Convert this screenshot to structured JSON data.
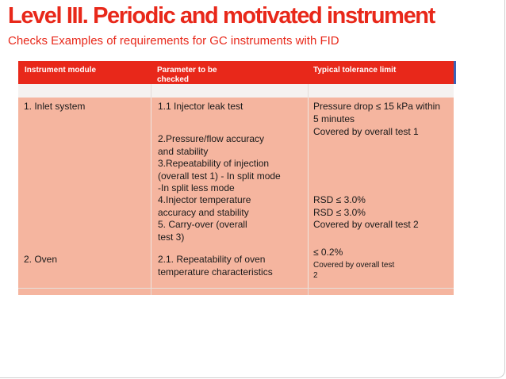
{
  "title": "Level III. Periodic and motivated instrument",
  "subtitle": "Checks Examples of requirements for GC instruments with FID",
  "table": {
    "headers": {
      "module": "Instrument module",
      "parameter_line1": "Parameter to be",
      "parameter_line2": "checked",
      "tolerance": "Typical tolerance limit"
    },
    "modules": {
      "inlet": "1. Inlet system",
      "oven": "2. Oven"
    },
    "parameters": {
      "p1": "1.1 Injector leak test",
      "p2a": "2.Pressure/flow  accuracy",
      "p2b": "and stability",
      "p3a": "3.Repeatability of  injection",
      "p3b": "(overall test 1) -  In split mode",
      "p3c": "-In split less mode",
      "p4a": "4.Injector temperature",
      "p4b": "accuracy and stability",
      "p5a": "5.      Carry-over (overall",
      "p5b": "test 3)",
      "p6a": "2.1. Repeatability of oven",
      "p6b": "temperature  characteristics"
    },
    "tolerances": {
      "t1a": "Pressure drop ≤ 15 kPa  within",
      "t1b": "5 minutes",
      "t2": "Covered by overall test  1",
      "t3": " RSD ≤ 3.0%",
      "t4": " RSD ≤ 3.0%",
      "t5": "Covered by overall test  2",
      "t6": "≤ 0.2%",
      "t7a": "Covered by overall test",
      "t7b": "2"
    }
  }
}
